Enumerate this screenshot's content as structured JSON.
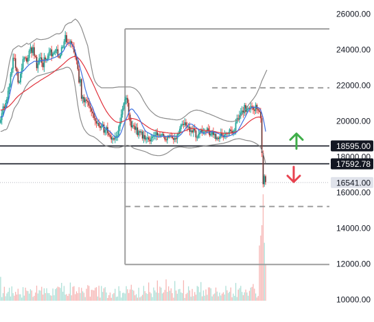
{
  "colors": {
    "up": "#26a69a",
    "down": "#ef5350",
    "candle_body": "#2f3b3a",
    "ma_fast": "#3d6fe0",
    "ma_slow": "#e0313b",
    "bands": "#8b8b8b",
    "levels": "#9e9e9e",
    "arrow_up": "#3fae49",
    "arrow_down": "#e8424f",
    "vol_up": "#9dd9cf",
    "vol_down": "#f4a7a5",
    "axis_text": "#131722"
  },
  "chart_data": {
    "type": "line",
    "title": "",
    "xlabel": "",
    "ylabel": "",
    "ylim": [
      9500,
      26400
    ],
    "y_axis_ticks": [
      "26000.00",
      "24000.00",
      "22000.00",
      "20000.00",
      "18000.00",
      "16000.00",
      "14000.00",
      "12000.00",
      "10000.00"
    ],
    "y_axis_tick_values": [
      26000,
      24000,
      22000,
      20000,
      18000,
      16000,
      14000,
      12000,
      10000
    ],
    "grid": false,
    "legend": "none",
    "price_labels": [
      {
        "text": "18595.00",
        "value": 18595,
        "style": "dark",
        "line": "solid"
      },
      {
        "text": "17592.78",
        "value": 17592.78,
        "style": "dark",
        "line": "solid"
      },
      {
        "text": "16541.00",
        "value": 16541,
        "style": "light",
        "line": "dotted"
      }
    ],
    "horizontal_levels": [
      {
        "value": 25150,
        "style": "solid",
        "start_index": 100
      },
      {
        "value": 21850,
        "style": "dashed",
        "start_index": 170
      },
      {
        "value": 15200,
        "style": "dashed",
        "start_index": 100
      },
      {
        "value": 11950,
        "style": "solid",
        "start_index": 100
      }
    ],
    "vertical_marker": {
      "index": 100,
      "top": 25150,
      "bottom": 11950
    },
    "arrows": [
      {
        "direction": "up",
        "value": 18900
      },
      {
        "direction": "down",
        "value": 17000
      }
    ],
    "close": [
      20050,
      20420,
      20800,
      20720,
      20990,
      21210,
      21670,
      21930,
      22600,
      22910,
      23520,
      23500,
      22960,
      22780,
      22150,
      22160,
      22630,
      22940,
      23450,
      23550,
      23520,
      23320,
      23530,
      23920,
      24110,
      23800,
      24120,
      23650,
      23580,
      22950,
      23200,
      23500,
      23550,
      23250,
      23010,
      23550,
      23440,
      23450,
      23650,
      23850,
      24000,
      23620,
      23760,
      23820,
      23930,
      24010,
      23600,
      23550,
      23700,
      24120,
      24120,
      24440,
      24800,
      24400,
      24380,
      24330,
      24460,
      24280,
      24160,
      23840,
      23580,
      23380,
      22900,
      22150,
      22330,
      21240,
      21340,
      21040,
      21190,
      21120,
      21050,
      20850,
      20700,
      20520,
      20420,
      20160,
      19990,
      19850,
      19880,
      19700,
      19610,
      19700,
      19790,
      19340,
      19480,
      19640,
      19310,
      19200,
      19110,
      18950,
      19020,
      18960,
      19070,
      19150,
      19180,
      19690,
      19910,
      20360,
      20670,
      20970,
      21200,
      21280,
      21000,
      20350,
      19980,
      19640,
      19740,
      19700,
      19500,
      19630,
      19200,
      19410,
      19350,
      19400,
      19010,
      19200,
      18960,
      19010,
      19070,
      18940,
      18860,
      19050,
      19130,
      19160,
      19180,
      19360,
      19190,
      19220,
      19180,
      19210,
      19260,
      19110,
      18950,
      18920,
      19130,
      19080,
      19180,
      19170,
      19030,
      18940,
      19030,
      18980,
      19250,
      19280,
      19550,
      19770,
      19820,
      19770,
      19910,
      19730,
      19650,
      19670,
      19390,
      19460,
      19360,
      19550,
      19450,
      19070,
      19070,
      19250,
      19350,
      19510,
      19380,
      19380,
      19410,
      19400,
      19580,
      19450,
      19190,
      19250,
      19380,
      19210,
      19260,
      18970,
      19050,
      18990,
      19100,
      19300,
      19170,
      19090,
      19230,
      19310,
      19270,
      19320,
      19510,
      19430,
      19300,
      19430,
      19450,
      19900,
      20150,
      20070,
      20310,
      20460,
      20570,
      20440,
      20880,
      20510,
      20670,
      20700,
      20670,
      20820,
      20800,
      20630,
      20560,
      20890,
      20660,
      20580,
      20510,
      20150,
      18200,
      16450,
      16900,
      16570
    ],
    "ma_fast": [
      20250,
      20200,
      20250,
      20500,
      20700,
      20890,
      21050,
      21370,
      21700,
      22030,
      22320,
      22520,
      22600,
      22700,
      22720,
      22700,
      22720,
      22730,
      22780,
      22850,
      22930,
      23010,
      23080,
      23150,
      23200,
      23240,
      23290,
      23340,
      23340,
      23300,
      23320,
      23340,
      23370,
      23370,
      23380,
      23390,
      23400,
      23400,
      23420,
      23430,
      23450,
      23490,
      23510,
      23540,
      23570,
      23600,
      23650,
      23720,
      23780,
      23820,
      23870,
      23980,
      24130,
      24240,
      24330,
      24370,
      24350,
      24320,
      24230,
      24100,
      23890,
      23650,
      23480,
      23240,
      22950,
      22680,
      22410,
      22130,
      21790,
      21570,
      21340,
      21200,
      21030,
      20870,
      20730,
      20530,
      20360,
      20200,
      20060,
      19960,
      19890,
      19810,
      19730,
      19680,
      19600,
      19540,
      19510,
      19450,
      19390,
      19320,
      19230,
      19160,
      19090,
      19070,
      19070,
      19140,
      19230,
      19390,
      19590,
      19780,
      19980,
      20110,
      20280,
      20470,
      20620,
      20660,
      20650,
      20580,
      20470,
      20400,
      20310,
      20180,
      20050,
      19900,
      19740,
      19610,
      19470,
      19400,
      19350,
      19320,
      19280,
      19240,
      19200,
      19180,
      19150,
      19130,
      19120,
      19120,
      19120,
      19130,
      19140,
      19140,
      19130,
      19120,
      19130,
      19140,
      19140,
      19140,
      19150,
      19150,
      19130,
      19110,
      19100,
      19120,
      19180,
      19240,
      19330,
      19420,
      19510,
      19600,
      19700,
      19770,
      19810,
      19820,
      19800,
      19750,
      19690,
      19640,
      19580,
      19510,
      19430,
      19380,
      19330,
      19310,
      19300,
      19320,
      19330,
      19360,
      19380,
      19390,
      19400,
      19380,
      19370,
      19340,
      19310,
      19290,
      19260,
      19200,
      19160,
      19130,
      19120,
      19130,
      19140,
      19140,
      19160,
      19190,
      19220,
      19260,
      19300,
      19340,
      19380,
      19480,
      19610,
      19740,
      19870,
      20010,
      20140,
      20270,
      20420,
      20530,
      20640,
      20700,
      20750,
      20760,
      20770,
      20760,
      20750,
      20730,
      20700,
      20600,
      20400,
      20150,
      19800,
      19400
    ],
    "ma_slow": [
      20600,
      20610,
      20630,
      20660,
      20700,
      20740,
      20790,
      20840,
      20910,
      20980,
      21060,
      21150,
      21240,
      21310,
      21380,
      21440,
      21500,
      21550,
      21600,
      21650,
      21700,
      21740,
      21790,
      21840,
      21890,
      21940,
      21990,
      22040,
      22090,
      22130,
      22170,
      22220,
      22270,
      22310,
      22350,
      22400,
      22440,
      22480,
      22520,
      22570,
      22610,
      22660,
      22700,
      22760,
      22810,
      22870,
      22920,
      22980,
      23040,
      23100,
      23160,
      23220,
      23290,
      23350,
      23410,
      23460,
      23510,
      23550,
      23580,
      23600,
      23600,
      23580,
      23540,
      23480,
      23400,
      23300,
      23190,
      23080,
      22950,
      22820,
      22680,
      22540,
      22400,
      22260,
      22110,
      21960,
      21810,
      21650,
      21500,
      21350,
      21200,
      21050,
      20910,
      20780,
      20660,
      20540,
      20440,
      20340,
      20250,
      20170,
      20100,
      20030,
      19980,
      19940,
      19920,
      19910,
      19910,
      19930,
      19960,
      19990,
      20020,
      20050,
      20080,
      20100,
      20120,
      20130,
      20130,
      20120,
      20100,
      20080,
      20050,
      20010,
      19970,
      19920,
      19870,
      19820,
      19770,
      19720,
      19670,
      19620,
      19580,
      19540,
      19510,
      19480,
      19460,
      19440,
      19420,
      19400,
      19390,
      19380,
      19370,
      19360,
      19350,
      19340,
      19330,
      19320,
      19310,
      19300,
      19300,
      19300,
      19300,
      19300,
      19300,
      19310,
      19330,
      19350,
      19380,
      19410,
      19440,
      19470,
      19500,
      19520,
      19540,
      19560,
      19570,
      19570,
      19570,
      19560,
      19550,
      19540,
      19520,
      19510,
      19490,
      19480,
      19470,
      19460,
      19450,
      19440,
      19440,
      19430,
      19420,
      19410,
      19400,
      19390,
      19370,
      19350,
      19340,
      19330,
      19320,
      19310,
      19300,
      19300,
      19300,
      19300,
      19300,
      19310,
      19320,
      19340,
      19360,
      19390,
      19420,
      19460,
      19500,
      19550,
      19600,
      19660,
      19720,
      19780,
      19850,
      19910,
      19970,
      20020,
      20070,
      20110,
      20150,
      20180,
      20200,
      20210,
      20210,
      20200
    ],
    "band_upper": [
      21600,
      21600,
      21650,
      21800,
      22100,
      22450,
      22850,
      23250,
      23550,
      23800,
      24000,
      24050,
      24100,
      24150,
      24200,
      24200,
      24150,
      24150,
      24200,
      24250,
      24300,
      24350,
      24300,
      24300,
      24350,
      24400,
      24450,
      24500,
      24550,
      24600,
      24580,
      24560,
      24550,
      24550,
      24560,
      24570,
      24580,
      24600,
      24620,
      24650,
      24690,
      24730,
      24770,
      24810,
      24850,
      24880,
      24880,
      24870,
      24900,
      24950,
      25050,
      25200,
      25350,
      25400,
      25450,
      25480,
      25500,
      25520,
      25600,
      25650,
      25700,
      25650,
      25580,
      25480,
      25350,
      25200,
      25000,
      24800,
      24600,
      24400,
      24200,
      23800,
      23400,
      23000,
      22650,
      22380,
      22200,
      22100,
      22000,
      21950,
      21900,
      21850,
      21850,
      21850,
      21850,
      21850,
      21850,
      21850,
      21850,
      21850,
      21850,
      21860,
      21870,
      21880,
      21890,
      21900,
      21900,
      21900,
      21900,
      21900,
      21900,
      21900,
      21900,
      21900,
      21900,
      21880,
      21860,
      21840,
      21800,
      21750,
      21680,
      21600,
      21500,
      21380,
      21250,
      21120,
      21000,
      20890,
      20780,
      20680,
      20600,
      20530,
      20470,
      20410,
      20350,
      20300,
      20260,
      20230,
      20200,
      20180,
      20170,
      20150,
      20140,
      20130,
      20120,
      20110,
      20100,
      20090,
      20080,
      20070,
      20060,
      20050,
      20050,
      20060,
      20070,
      20100,
      20140,
      20190,
      20240,
      20300,
      20360,
      20420,
      20470,
      20510,
      20540,
      20570,
      20590,
      20600,
      20600,
      20590,
      20580,
      20560,
      20540,
      20510,
      20480,
      20450,
      20420,
      20400,
      20380,
      20350,
      20320,
      20290,
      20260,
      20230,
      20200,
      20170,
      20140,
      20110,
      20080,
      20050,
      20030,
      20010,
      19990,
      19980,
      19970,
      19960,
      19960,
      19970,
      19990,
      20010,
      20050,
      20110,
      20180,
      20260,
      20350,
      20450,
      20550,
      20650,
      20750,
      20860,
      20960,
      21050,
      21130,
      21220,
      21320,
      21420,
      21550,
      21700,
      21850,
      22050,
      22250,
      22400,
      22550,
      22700,
      22850
    ],
    "band_lower": [
      19400,
      19420,
      19450,
      19500,
      19500,
      19550,
      19700,
      19900,
      20050,
      20200,
      20500,
      20700,
      20800,
      20900,
      21000,
      21150,
      21300,
      21450,
      21600,
      21750,
      21900,
      22000,
      22100,
      22200,
      22250,
      22300,
      22350,
      22400,
      22450,
      22500,
      22520,
      22540,
      22560,
      22580,
      22600,
      22620,
      22640,
      22660,
      22680,
      22700,
      22720,
      22740,
      22760,
      22780,
      22800,
      22820,
      22840,
      22860,
      22880,
      22900,
      22920,
      22950,
      22980,
      23000,
      23000,
      22980,
      22920,
      22800,
      22600,
      22300,
      21900,
      21400,
      20900,
      20500,
      20150,
      19900,
      19700,
      19550,
      19450,
      19350,
      19280,
      19220,
      19180,
      19150,
      19130,
      19100,
      19050,
      19000,
      18950,
      18880,
      18820,
      18760,
      18700,
      18650,
      18620,
      18590,
      18570,
      18550,
      18540,
      18530,
      18520,
      18510,
      18500,
      18500,
      18500,
      18500,
      18520,
      18540,
      18560,
      18580,
      18600,
      18620,
      18630,
      18620,
      18600,
      18560,
      18510,
      18470,
      18440,
      18420,
      18400,
      18380,
      18360,
      18340,
      18320,
      18300,
      18280,
      18250,
      18220,
      18180,
      18150,
      18120,
      18100,
      18080,
      18070,
      18060,
      18050,
      18050,
      18050,
      18060,
      18080,
      18100,
      18130,
      18160,
      18200,
      18250,
      18300,
      18350,
      18400,
      18450,
      18480,
      18500,
      18520,
      18530,
      18540,
      18540,
      18530,
      18520,
      18510,
      18500,
      18490,
      18480,
      18480,
      18480,
      18490,
      18500,
      18510,
      18520,
      18530,
      18540,
      18550,
      18560,
      18570,
      18580,
      18590,
      18600,
      18610,
      18620,
      18630,
      18640,
      18650,
      18660,
      18670,
      18680,
      18690,
      18700,
      18710,
      18720,
      18730,
      18740,
      18760,
      18780,
      18800,
      18820,
      18850,
      18880,
      18910,
      18940,
      18960,
      18980,
      18990,
      19000,
      19000,
      18990,
      18970,
      18950,
      18930,
      18910,
      18900,
      18890,
      18880,
      18860,
      18840,
      18810,
      18780,
      18740,
      18700,
      18650,
      18600,
      18500,
      18350,
      18150,
      17900,
      17600
    ]
  }
}
